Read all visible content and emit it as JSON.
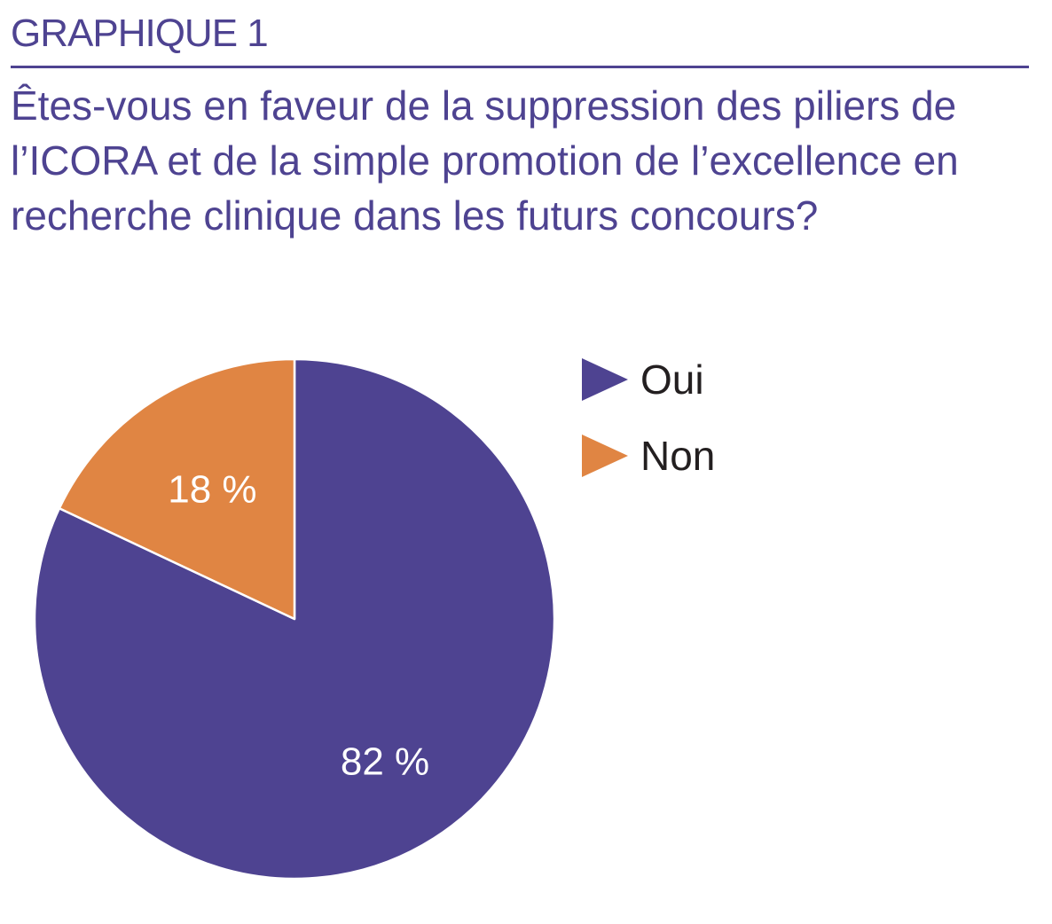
{
  "figure_label": "GRAPHIQUE 1",
  "colors": {
    "primary": "#4e4391",
    "oui": "#4e4391",
    "non": "#e08543",
    "separator": "#ffffff"
  },
  "chart_data": {
    "type": "pie",
    "title": "Êtes-vous en faveur de la suppression des piliers de l’ICORA et de la simple promotion de l’excellence en recherche clinique dans les futurs concours?",
    "slices": [
      {
        "label": "Oui",
        "value": 82,
        "value_label": "82 %",
        "color": "#4e4391"
      },
      {
        "label": "Non",
        "value": 18,
        "value_label": "18 %",
        "color": "#e08543"
      }
    ],
    "legend": {
      "position": "right",
      "marker": "triangle"
    }
  }
}
